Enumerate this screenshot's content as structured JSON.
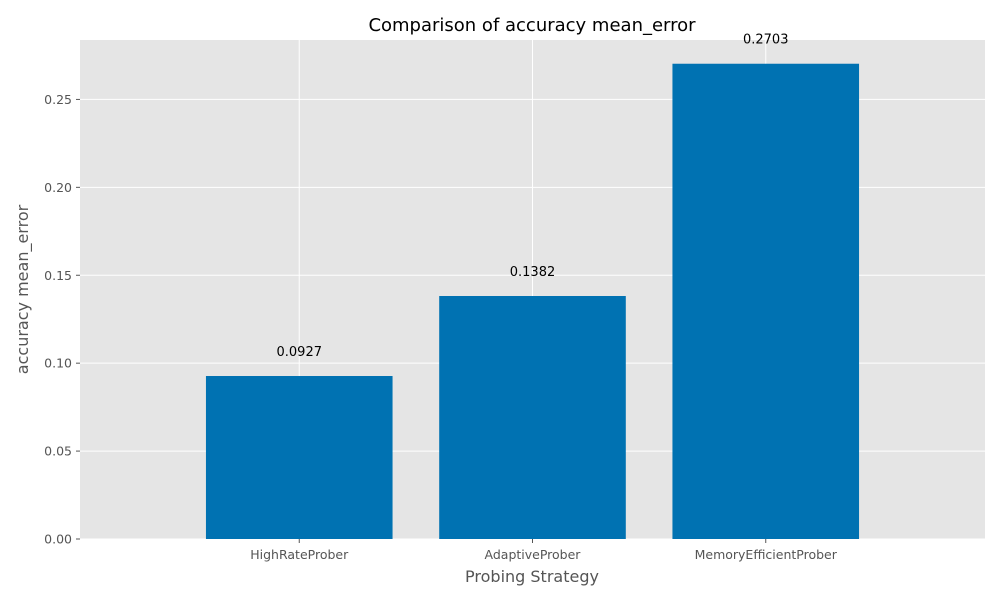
{
  "chart_data": {
    "type": "bar",
    "title": "Comparison of accuracy mean_error",
    "xlabel": "Probing Strategy",
    "ylabel": "accuracy mean_error",
    "categories": [
      "HighRateProber",
      "AdaptiveProber",
      "MemoryEfficientProber"
    ],
    "values": [
      0.0927,
      0.1382,
      0.2703
    ],
    "value_labels": [
      "0.0927",
      "0.1382",
      "0.2703"
    ],
    "ylim": [
      0,
      0.2838
    ],
    "yticks": [
      0.0,
      0.05,
      0.1,
      0.15,
      0.2,
      0.25
    ],
    "ytick_labels": [
      "0.00",
      "0.05",
      "0.10",
      "0.15",
      "0.20",
      "0.25"
    ],
    "grid": true,
    "legend": "none",
    "colors": {
      "bar": "#0072b2",
      "plot_background": "#e5e5e5",
      "grid": "#ffffff"
    }
  }
}
